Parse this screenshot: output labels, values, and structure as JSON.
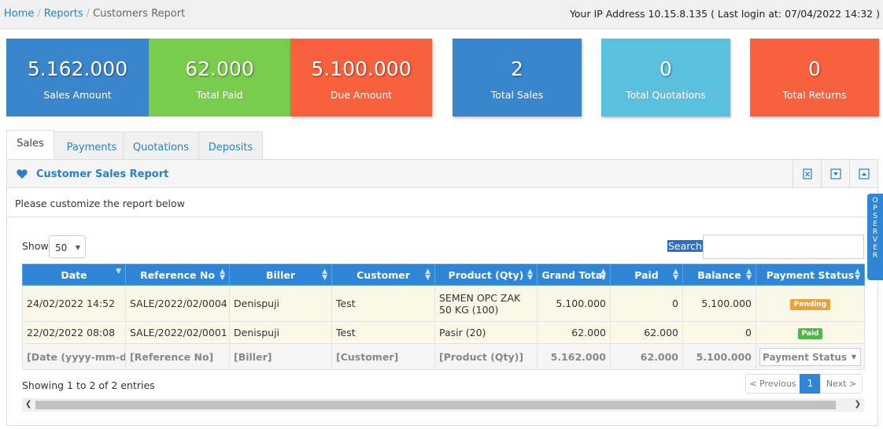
{
  "breadcrumb": {
    "home": "Home",
    "reports": "Reports",
    "current": "Customers Report"
  },
  "ip_info": "Your IP Address 10.15.8.135 ( Last login at: 07/04/2022 14:32 )",
  "stats": {
    "sales_amount": {
      "value": "5.162.000",
      "label": "Sales Amount",
      "color": "#3a86cc"
    },
    "total_paid": {
      "value": "62.000",
      "label": "Total Paid",
      "color": "#7acc4c"
    },
    "due_amount": {
      "value": "5.100.000",
      "label": "Due Amount",
      "color": "#f9603d"
    },
    "total_sales": {
      "value": "2",
      "label": "Total Sales",
      "color": "#3a86cc"
    },
    "total_quotations": {
      "value": "0",
      "label": "Total Quotations",
      "color": "#5bc0de"
    },
    "total_returns": {
      "value": "0",
      "label": "Total Returns",
      "color": "#f9603d"
    }
  },
  "tabs": [
    "Sales",
    "Payments",
    "Quotations",
    "Deposits"
  ],
  "panel": {
    "title": "Customer Sales Report",
    "intro": "Please customize the report below",
    "show_label": "Show",
    "show_value": "50",
    "search_label": "Search"
  },
  "table": {
    "headers": [
      "Date",
      "Reference No",
      "Biller",
      "Customer",
      "Product (Qty)",
      "Grand Total",
      "Paid",
      "Balance",
      "Payment Status"
    ],
    "rows": [
      {
        "date": "24/02/2022 14:52",
        "ref": "SALE/2022/02/0004",
        "biller": "Denispuji",
        "customer": "Test",
        "product": "SEMEN OPC ZAK 50 KG (100)",
        "grand_total": "5.100.000",
        "paid": "0",
        "balance": "5.100.000",
        "status": "Pending"
      },
      {
        "date": "22/02/2022 08:08",
        "ref": "SALE/2022/02/0001",
        "biller": "Denispuji",
        "customer": "Test",
        "product": "Pasir (20)",
        "grand_total": "62.000",
        "paid": "62.000",
        "balance": "0",
        "status": "Paid"
      }
    ],
    "footer": {
      "date": "[Date (yyyy-mm-dd)]",
      "ref": "[Reference No]",
      "biller": "[Biller]",
      "customer": "[Customer]",
      "product": "[Product (Qty)]",
      "grand_total": "5.162.000",
      "paid": "62.000",
      "balance": "5.100.000",
      "status": "Payment Status"
    }
  },
  "showing": "Showing 1 to 2 of 2 entries",
  "pager": {
    "prev": "< Previous",
    "current": "1",
    "next": "Next >"
  },
  "side_tab": "OP SERVER"
}
